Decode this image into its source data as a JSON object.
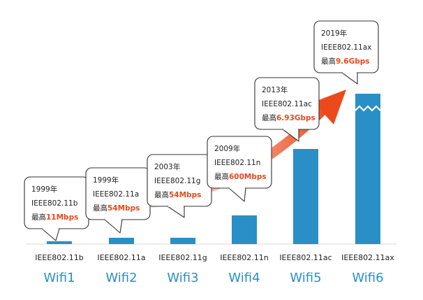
{
  "chart_data": {
    "type": "bar",
    "categories": [
      "Wifi1",
      "Wifi2",
      "Wifi3",
      "Wifi4",
      "Wifi5",
      "Wifi6"
    ],
    "standards": [
      "IEEE802.11b",
      "IEEE802.11a",
      "IEEE802.11g",
      "IEEE802.11n",
      "IEEE802.11ac",
      "IEEE802.11ax"
    ],
    "years": [
      "1999年",
      "1999年",
      "2003年",
      "2009年",
      "2013年",
      "2019年"
    ],
    "speed_prefix": "最高",
    "speeds": [
      "11Mbps",
      "54Mbps",
      "54Mbps",
      "600Mbps",
      "6.93Gbps",
      "9.6Gbps"
    ],
    "values": [
      0.011,
      0.054,
      0.054,
      0.6,
      6.93,
      9.6
    ],
    "unit": "Gbps",
    "bar_color": "#2a8fc6",
    "accent_color": "#e8491d",
    "label_color": "#2a8fc6",
    "axis_broken_for": "Wifi6",
    "trend_arrow": true,
    "grid": false,
    "legend": "none"
  }
}
